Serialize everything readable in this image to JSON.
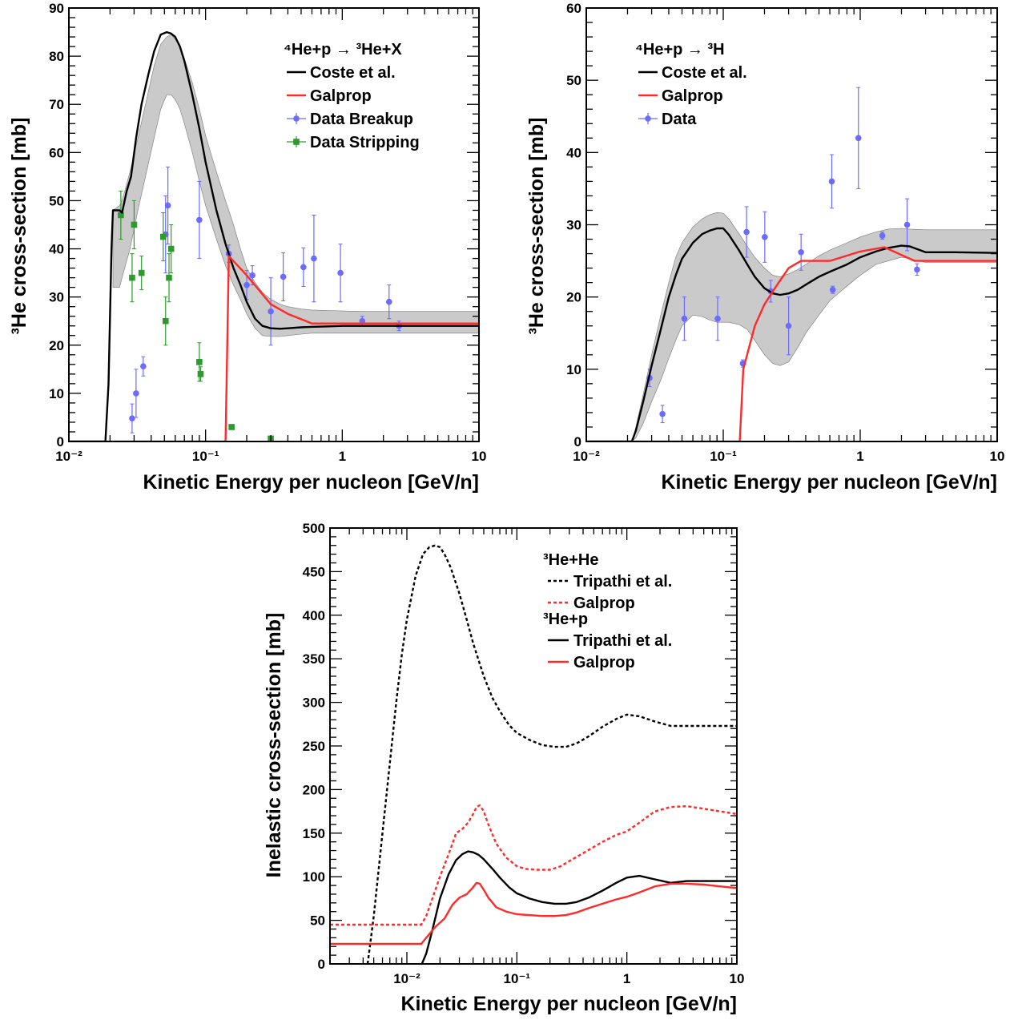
{
  "colors": {
    "black": "#000000",
    "red": "#ff2a2a",
    "blue": "#6b6bff",
    "green": "#2c9a2c",
    "band": "#b8b8b8"
  },
  "chart_data": [
    {
      "id": "p1",
      "type": "line",
      "xscale": "log",
      "xlim": [
        0.01,
        10
      ],
      "ylim": [
        0,
        90
      ],
      "xlabel": "Kinetic Energy per nucleon [GeV/n]",
      "ylabel": "³He cross-section [mb]",
      "xtick_labels": [
        "10⁻²",
        "10⁻¹",
        "1",
        "10"
      ],
      "ytick_labels": [
        "0",
        "10",
        "20",
        "30",
        "40",
        "50",
        "60",
        "70",
        "80",
        "90"
      ],
      "ytick_values": [
        0,
        10,
        20,
        30,
        40,
        50,
        60,
        70,
        80,
        90
      ],
      "legend_title": "⁴He+p → ³He+X",
      "series": [
        {
          "name": "Coste et al.",
          "kind": "line",
          "color": "#000000",
          "x": [
            0.01,
            0.0185,
            0.0195,
            0.0205,
            0.021,
            0.0235,
            0.0245,
            0.0265,
            0.0285,
            0.031,
            0.034,
            0.038,
            0.042,
            0.047,
            0.052,
            0.056,
            0.06,
            0.065,
            0.07,
            0.08,
            0.09,
            0.1,
            0.12,
            0.14,
            0.16,
            0.18,
            0.2,
            0.23,
            0.26,
            0.3,
            0.35,
            0.4,
            0.5,
            0.6,
            0.8,
            1,
            1.5,
            2,
            3,
            5,
            10
          ],
          "y": [
            0,
            0,
            12,
            40,
            48,
            48,
            47.5,
            52,
            55,
            63,
            70,
            76,
            81,
            84.5,
            85,
            84.7,
            84,
            82,
            79,
            72,
            65,
            58,
            48,
            41,
            36,
            32.5,
            29,
            25.5,
            24,
            23.5,
            23.4,
            23.5,
            23.7,
            23.8,
            23.9,
            24,
            24,
            24,
            24,
            24,
            24
          ]
        },
        {
          "name": "band",
          "kind": "band",
          "color": "#b8b8b8",
          "x": [
            0.021,
            0.0235,
            0.0245,
            0.028,
            0.032,
            0.037,
            0.042,
            0.047,
            0.052,
            0.056,
            0.06,
            0.065,
            0.07,
            0.08,
            0.09,
            0.1,
            0.12,
            0.14,
            0.16,
            0.18,
            0.2,
            0.23,
            0.26,
            0.3,
            0.35,
            0.4,
            0.5,
            0.6,
            0.8,
            1,
            1.5,
            2,
            3,
            5,
            10
          ],
          "y_low": [
            32,
            32,
            34,
            40,
            48,
            56,
            63,
            69,
            72,
            72,
            71,
            69,
            66,
            60,
            54,
            49,
            42,
            36.5,
            32.5,
            29.5,
            26.5,
            23.5,
            22,
            21.8,
            21.8,
            22,
            22.3,
            22.5,
            22.5,
            22.5,
            22.5,
            22.5,
            22.5,
            22.5,
            22.5
          ],
          "y_high": [
            48,
            49,
            50,
            56,
            63,
            71,
            78,
            82.5,
            84,
            84.5,
            83.5,
            82,
            79.5,
            74.5,
            69,
            63.5,
            56,
            50,
            45,
            40,
            36,
            33,
            31,
            29.5,
            28.5,
            28,
            27.5,
            27.3,
            27.2,
            27.1,
            27,
            27,
            27,
            27,
            27
          ]
        },
        {
          "name": "Galprop",
          "kind": "line",
          "color": "#ff2a2a",
          "x": [
            0.01,
            0.14,
            0.148,
            0.2,
            0.3,
            0.4,
            0.6,
            1,
            10
          ],
          "y": [
            0,
            0,
            38.5,
            34.5,
            28.5,
            26.5,
            24.5,
            24.5,
            24.5
          ]
        },
        {
          "name": "Data Breakup",
          "kind": "points",
          "color": "#6b6bff",
          "marker": "circle",
          "x": [
            0.029,
            0.031,
            0.035,
            0.051,
            0.053,
            0.09,
            0.148,
            0.2,
            0.22,
            0.3,
            0.37,
            0.52,
            0.62,
            0.97,
            1.4,
            2.2,
            2.6
          ],
          "y": [
            4.8,
            10,
            15.6,
            43,
            49,
            46,
            39,
            32.5,
            34.5,
            27,
            34.2,
            36.2,
            38,
            35,
            25,
            29,
            24
          ],
          "err": [
            3,
            5,
            2,
            8,
            8,
            8,
            1.8,
            3,
            2,
            7,
            5,
            4,
            9,
            6,
            1,
            3.5,
            1
          ]
        },
        {
          "name": "Data Stripping",
          "kind": "points",
          "color": "#2c9a2c",
          "marker": "square",
          "x": [
            0.024,
            0.029,
            0.03,
            0.034,
            0.049,
            0.051,
            0.054,
            0.056,
            0.09,
            0.092,
            0.155,
            0.3
          ],
          "y": [
            47,
            34,
            45,
            35,
            42.5,
            25,
            34,
            40,
            16.5,
            14,
            3,
            0.6
          ],
          "err": [
            5,
            5,
            5,
            3.5,
            5,
            5,
            5,
            5,
            4,
            1.5,
            0,
            0
          ]
        }
      ]
    },
    {
      "id": "p2",
      "type": "line",
      "xscale": "log",
      "xlim": [
        0.01,
        10
      ],
      "ylim": [
        0,
        60
      ],
      "xlabel": "Kinetic Energy per nucleon [GeV/n]",
      "ylabel": "³He cross-section [mb]",
      "xtick_labels": [
        "10⁻²",
        "10⁻¹",
        "1",
        "10"
      ],
      "ytick_labels": [
        "0",
        "10",
        "20",
        "30",
        "40",
        "50",
        "60"
      ],
      "ytick_values": [
        0,
        10,
        20,
        30,
        40,
        50,
        60
      ],
      "legend_title": "⁴He+p → ³H",
      "series": [
        {
          "name": "Coste et al.",
          "kind": "line",
          "color": "#000000",
          "x": [
            0.01,
            0.0215,
            0.023,
            0.026,
            0.03,
            0.035,
            0.04,
            0.045,
            0.05,
            0.06,
            0.07,
            0.08,
            0.09,
            0.1,
            0.11,
            0.13,
            0.15,
            0.17,
            0.2,
            0.23,
            0.26,
            0.3,
            0.35,
            0.4,
            0.5,
            0.6,
            0.8,
            1,
            1.3,
            1.6,
            2,
            2.3,
            3,
            5,
            10
          ],
          "y": [
            0,
            0,
            1.5,
            5.5,
            10.5,
            15.5,
            20,
            23,
            25.3,
            27.5,
            28.7,
            29.2,
            29.5,
            29.5,
            28.6,
            26.5,
            24.5,
            22.8,
            21.2,
            20.5,
            20.3,
            20.5,
            21,
            21.7,
            22.8,
            23.5,
            24.5,
            25.5,
            26.3,
            26.8,
            27.1,
            27,
            26.2,
            26.2,
            26.1
          ]
        },
        {
          "name": "band",
          "kind": "band",
          "color": "#b8b8b8",
          "x": [
            0.0215,
            0.023,
            0.026,
            0.03,
            0.035,
            0.04,
            0.045,
            0.05,
            0.06,
            0.07,
            0.08,
            0.09,
            0.1,
            0.11,
            0.13,
            0.15,
            0.17,
            0.2,
            0.23,
            0.26,
            0.3,
            0.35,
            0.4,
            0.5,
            0.6,
            0.8,
            1,
            1.3,
            1.6,
            2,
            2.3,
            3,
            5,
            10
          ],
          "y_low": [
            0,
            0.5,
            2.5,
            5.5,
            8.5,
            11.5,
            14,
            16,
            17.5,
            17.3,
            16.8,
            16.5,
            16.5,
            16.5,
            16.2,
            15.5,
            14,
            12,
            10.8,
            10.5,
            11,
            13,
            15,
            17.5,
            19.5,
            21.5,
            23,
            24.5,
            25,
            25.5,
            25.3,
            24.8,
            24.8,
            24.8
          ],
          "y_high": [
            0,
            2,
            6.5,
            12,
            17.5,
            22,
            25.5,
            27.5,
            29.7,
            30.8,
            31.4,
            31.7,
            31.6,
            30.8,
            28.8,
            27,
            25.5,
            24,
            23,
            22.8,
            23.2,
            23.8,
            24.5,
            25.7,
            26.5,
            27.5,
            28.3,
            29,
            29.4,
            29.5,
            29.4,
            29.3,
            29.3,
            29.3
          ]
        },
        {
          "name": "Galprop",
          "kind": "line",
          "color": "#ff2a2a",
          "x": [
            0.01,
            0.132,
            0.14,
            0.17,
            0.2,
            0.25,
            0.3,
            0.37,
            0.6,
            1,
            1.5,
            2.5,
            10
          ],
          "y": [
            0,
            0,
            10,
            16,
            19,
            21.8,
            24,
            25,
            25,
            26.3,
            26.9,
            25,
            25
          ]
        },
        {
          "name": "Data",
          "kind": "points",
          "color": "#6b6bff",
          "marker": "circle",
          "x": [
            0.029,
            0.036,
            0.052,
            0.091,
            0.139,
            0.148,
            0.201,
            0.222,
            0.3,
            0.37,
            0.62,
            0.63,
            0.97,
            1.45,
            2.2,
            2.6
          ],
          "y": [
            8.8,
            3.8,
            17,
            17,
            10.8,
            29,
            28.3,
            20.8,
            16,
            26.2,
            36,
            21,
            42,
            28.5,
            30,
            23.8
          ],
          "err": [
            1.2,
            1.2,
            3,
            3,
            0.5,
            3.5,
            3.5,
            1.5,
            4,
            2.5,
            3.7,
            0.5,
            7,
            0.5,
            3.6,
            0.8
          ]
        }
      ]
    },
    {
      "id": "p3",
      "type": "line",
      "xscale": "log",
      "xlim": [
        0.002,
        10
      ],
      "ylim": [
        0,
        500
      ],
      "xlabel": "Kinetic Energy per nucleon [GeV/n]",
      "ylabel": "Inelastic cross-section [mb]",
      "xtick_labels": [
        "10⁻²",
        "10⁻¹",
        "1",
        "10"
      ],
      "ytick_labels": [
        "0",
        "50",
        "100",
        "150",
        "200",
        "250",
        "300",
        "350",
        "400",
        "450",
        "500"
      ],
      "ytick_values": [
        0,
        50,
        100,
        150,
        200,
        250,
        300,
        350,
        400,
        450,
        500
      ],
      "legend_groups": [
        {
          "title": "³He+He",
          "entries": [
            "Tripathi et al.",
            "Galprop"
          ]
        },
        {
          "title": "³He+p",
          "entries": [
            "Tripathi et al.",
            "Galprop"
          ]
        }
      ],
      "series": [
        {
          "name": "Tripathi et al.",
          "group": "³He+He",
          "kind": "line",
          "dash": true,
          "color": "#000000",
          "x": [
            0.0044,
            0.005,
            0.006,
            0.007,
            0.008,
            0.009,
            0.01,
            0.012,
            0.014,
            0.016,
            0.018,
            0.02,
            0.022,
            0.025,
            0.03,
            0.035,
            0.04,
            0.05,
            0.06,
            0.07,
            0.085,
            0.1,
            0.13,
            0.17,
            0.22,
            0.28,
            0.35,
            0.45,
            0.6,
            0.8,
            1,
            1.3,
            1.8,
            2.5,
            3.5,
            5,
            7,
            10
          ],
          "y": [
            0,
            55,
            150,
            230,
            300,
            355,
            395,
            445,
            470,
            478,
            480,
            478,
            470,
            455,
            425,
            395,
            368,
            330,
            305,
            290,
            274,
            265,
            257,
            251,
            249,
            249,
            253,
            261,
            272,
            281,
            286,
            284,
            278,
            273,
            273,
            273,
            273,
            273
          ]
        },
        {
          "name": "Galprop",
          "group": "³He+He",
          "kind": "line",
          "dash": true,
          "color": "#ff2a2a",
          "x": [
            0.002,
            0.0135,
            0.015,
            0.02,
            0.025,
            0.028,
            0.032,
            0.036,
            0.04,
            0.043,
            0.046,
            0.05,
            0.055,
            0.065,
            0.08,
            0.1,
            0.12,
            0.15,
            0.2,
            0.25,
            0.3,
            0.4,
            0.6,
            0.8,
            1,
            1.3,
            1.8,
            2.5,
            3.5,
            5,
            7,
            10
          ],
          "y": [
            45,
            45,
            55,
            100,
            132,
            150,
            155,
            162,
            172,
            180,
            182,
            175,
            160,
            138,
            122,
            112,
            109,
            108,
            108,
            112,
            118,
            127,
            140,
            148,
            152,
            162,
            175,
            180,
            181,
            178,
            175,
            172
          ]
        },
        {
          "name": "Tripathi et al.",
          "group": "³He+p",
          "kind": "line",
          "dash": false,
          "color": "#000000",
          "x": [
            0.0137,
            0.015,
            0.017,
            0.02,
            0.024,
            0.028,
            0.032,
            0.036,
            0.04,
            0.045,
            0.05,
            0.06,
            0.07,
            0.085,
            0.1,
            0.13,
            0.17,
            0.22,
            0.28,
            0.35,
            0.45,
            0.6,
            0.8,
            1,
            1.3,
            1.8,
            2.5,
            3.5,
            5,
            7,
            10
          ],
          "y": [
            0,
            12,
            38,
            75,
            103,
            119,
            126,
            129,
            128,
            125,
            120,
            109,
            99,
            88,
            81,
            75,
            71,
            69,
            69,
            71,
            76,
            84,
            93,
            99,
            101,
            97,
            93,
            95,
            95,
            95,
            95
          ]
        },
        {
          "name": "Galprop",
          "group": "³He+p",
          "kind": "line",
          "dash": false,
          "color": "#ff2a2a",
          "x": [
            0.002,
            0.0135,
            0.015,
            0.018,
            0.022,
            0.026,
            0.03,
            0.035,
            0.04,
            0.043,
            0.046,
            0.05,
            0.055,
            0.065,
            0.08,
            0.1,
            0.13,
            0.17,
            0.22,
            0.28,
            0.35,
            0.45,
            0.6,
            0.8,
            1,
            1.3,
            1.8,
            2.5,
            3.5,
            5,
            7,
            10
          ],
          "y": [
            23,
            23,
            30,
            42,
            52,
            68,
            76,
            80,
            88,
            93,
            92,
            85,
            76,
            65,
            60,
            57,
            56,
            55,
            55,
            56,
            59,
            64,
            69,
            74,
            77,
            82,
            89,
            92,
            92,
            91,
            89,
            87
          ]
        }
      ]
    }
  ]
}
